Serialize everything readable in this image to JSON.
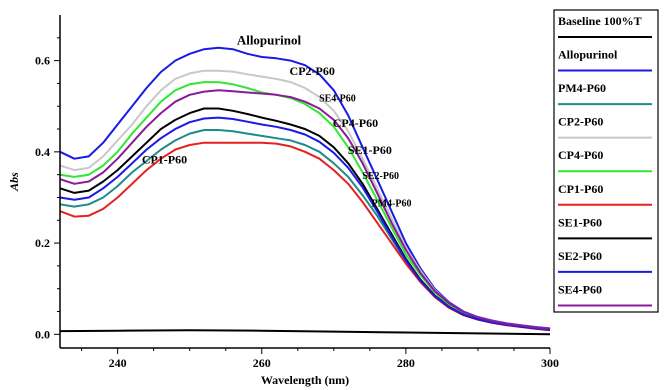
{
  "chart_data": {
    "type": "line",
    "title": "",
    "xlabel": "Wavelength (nm)",
    "ylabel": "Abs",
    "xlim": [
      232,
      300
    ],
    "ylim": [
      -0.03,
      0.7
    ],
    "xticks": [
      240,
      260,
      280,
      300
    ],
    "yticks": [
      0.0,
      0.2,
      0.4,
      0.6
    ],
    "xtick_labels": [
      "240",
      "260",
      "280",
      "300"
    ],
    "ytick_labels": [
      "0.0",
      "0.2",
      "0.4",
      "0.6"
    ],
    "grid": false,
    "legend": "right",
    "series": [
      {
        "name": "Baseline 100%T",
        "color": "#000000",
        "x": [
          232,
          240,
          250,
          260,
          270,
          280,
          290,
          300
        ],
        "y": [
          0.007,
          0.008,
          0.009,
          0.008,
          0.006,
          0.004,
          0.002,
          0.0
        ]
      },
      {
        "name": "Allopurinol",
        "color": "#1a1ae6",
        "x": [
          232,
          234,
          236,
          238,
          240,
          242,
          244,
          246,
          248,
          250,
          252,
          254,
          256,
          258,
          260,
          262,
          264,
          266,
          268,
          270,
          272,
          274,
          276,
          278,
          280,
          282,
          284,
          286,
          288,
          290,
          292,
          294,
          296,
          298,
          300
        ],
        "y": [
          0.4,
          0.385,
          0.39,
          0.42,
          0.46,
          0.5,
          0.54,
          0.575,
          0.6,
          0.615,
          0.625,
          0.628,
          0.625,
          0.615,
          0.608,
          0.605,
          0.6,
          0.59,
          0.57,
          0.535,
          0.48,
          0.41,
          0.34,
          0.27,
          0.2,
          0.145,
          0.1,
          0.07,
          0.05,
          0.038,
          0.03,
          0.024,
          0.02,
          0.016,
          0.013
        ]
      },
      {
        "name": "PM4-P60",
        "color": "#1f8a8a",
        "x": [
          232,
          234,
          236,
          238,
          240,
          242,
          244,
          246,
          248,
          250,
          252,
          254,
          256,
          258,
          260,
          262,
          264,
          266,
          268,
          270,
          272,
          274,
          276,
          278,
          280,
          282,
          284,
          286,
          288,
          290,
          292,
          294,
          296,
          298,
          300
        ],
        "y": [
          0.285,
          0.28,
          0.285,
          0.3,
          0.325,
          0.355,
          0.38,
          0.405,
          0.425,
          0.44,
          0.448,
          0.448,
          0.445,
          0.44,
          0.435,
          0.43,
          0.425,
          0.415,
          0.4,
          0.375,
          0.345,
          0.305,
          0.26,
          0.21,
          0.16,
          0.12,
          0.085,
          0.062,
          0.045,
          0.035,
          0.028,
          0.022,
          0.018,
          0.014,
          0.011
        ]
      },
      {
        "name": "CP2-P60",
        "color": "#c8c8c8",
        "x": [
          232,
          234,
          236,
          238,
          240,
          242,
          244,
          246,
          248,
          250,
          252,
          254,
          256,
          258,
          260,
          262,
          264,
          266,
          268,
          270,
          272,
          274,
          276,
          278,
          280,
          282,
          284,
          286,
          288,
          290,
          292,
          294,
          296,
          298,
          300
        ],
        "y": [
          0.37,
          0.36,
          0.365,
          0.39,
          0.425,
          0.46,
          0.5,
          0.535,
          0.56,
          0.572,
          0.578,
          0.578,
          0.576,
          0.57,
          0.565,
          0.56,
          0.553,
          0.54,
          0.52,
          0.49,
          0.445,
          0.385,
          0.32,
          0.255,
          0.19,
          0.14,
          0.097,
          0.068,
          0.049,
          0.037,
          0.029,
          0.023,
          0.019,
          0.015,
          0.012
        ]
      },
      {
        "name": "CP4-P60",
        "color": "#33e633",
        "x": [
          232,
          234,
          236,
          238,
          240,
          242,
          244,
          246,
          248,
          250,
          252,
          254,
          256,
          258,
          260,
          262,
          264,
          266,
          268,
          270,
          272,
          274,
          276,
          278,
          280,
          282,
          284,
          286,
          288,
          290,
          292,
          294,
          296,
          298,
          300
        ],
        "y": [
          0.35,
          0.345,
          0.35,
          0.37,
          0.4,
          0.44,
          0.475,
          0.51,
          0.535,
          0.548,
          0.553,
          0.553,
          0.548,
          0.54,
          0.53,
          0.525,
          0.518,
          0.505,
          0.485,
          0.455,
          0.41,
          0.355,
          0.295,
          0.235,
          0.175,
          0.13,
          0.092,
          0.065,
          0.047,
          0.036,
          0.028,
          0.022,
          0.018,
          0.014,
          0.011
        ]
      },
      {
        "name": "CP1-P60",
        "color": "#e62020",
        "x": [
          232,
          234,
          236,
          238,
          240,
          242,
          244,
          246,
          248,
          250,
          252,
          254,
          256,
          258,
          260,
          262,
          264,
          266,
          268,
          270,
          272,
          274,
          276,
          278,
          280,
          282,
          284,
          286,
          288,
          290,
          292,
          294,
          296,
          298,
          300
        ],
        "y": [
          0.27,
          0.258,
          0.26,
          0.275,
          0.3,
          0.33,
          0.36,
          0.385,
          0.405,
          0.415,
          0.42,
          0.42,
          0.42,
          0.42,
          0.42,
          0.418,
          0.412,
          0.4,
          0.385,
          0.36,
          0.33,
          0.29,
          0.245,
          0.2,
          0.155,
          0.115,
          0.082,
          0.058,
          0.042,
          0.032,
          0.025,
          0.02,
          0.016,
          0.012,
          0.009
        ]
      },
      {
        "name": "SE1-P60",
        "color": "#000000",
        "x": [
          232,
          234,
          236,
          238,
          240,
          242,
          244,
          246,
          248,
          250,
          252,
          254,
          256,
          258,
          260,
          262,
          264,
          266,
          268,
          270,
          272,
          274,
          276,
          278,
          280,
          282,
          284,
          286,
          288,
          290,
          292,
          294,
          296,
          298,
          300
        ],
        "y": [
          0.32,
          0.31,
          0.315,
          0.335,
          0.36,
          0.39,
          0.42,
          0.45,
          0.47,
          0.485,
          0.495,
          0.495,
          0.49,
          0.483,
          0.475,
          0.468,
          0.46,
          0.45,
          0.435,
          0.41,
          0.375,
          0.33,
          0.275,
          0.22,
          0.165,
          0.12,
          0.085,
          0.06,
          0.043,
          0.033,
          0.026,
          0.021,
          0.017,
          0.013,
          0.01
        ]
      },
      {
        "name": "SE2-P60",
        "color": "#1a1ae6",
        "x": [
          232,
          234,
          236,
          238,
          240,
          242,
          244,
          246,
          248,
          250,
          252,
          254,
          256,
          258,
          260,
          262,
          264,
          266,
          268,
          270,
          272,
          274,
          276,
          278,
          280,
          282,
          284,
          286,
          288,
          290,
          292,
          294,
          296,
          298,
          300
        ],
        "y": [
          0.3,
          0.295,
          0.3,
          0.32,
          0.345,
          0.375,
          0.405,
          0.43,
          0.45,
          0.465,
          0.473,
          0.475,
          0.472,
          0.466,
          0.46,
          0.455,
          0.448,
          0.438,
          0.422,
          0.398,
          0.365,
          0.322,
          0.27,
          0.215,
          0.162,
          0.118,
          0.084,
          0.06,
          0.043,
          0.033,
          0.026,
          0.021,
          0.017,
          0.013,
          0.01
        ]
      },
      {
        "name": "SE4-P60",
        "color": "#8a1a9a",
        "x": [
          232,
          234,
          236,
          238,
          240,
          242,
          244,
          246,
          248,
          250,
          252,
          254,
          256,
          258,
          260,
          262,
          264,
          266,
          268,
          270,
          272,
          274,
          276,
          278,
          280,
          282,
          284,
          286,
          288,
          290,
          292,
          294,
          296,
          298,
          300
        ],
        "y": [
          0.34,
          0.33,
          0.335,
          0.355,
          0.385,
          0.42,
          0.455,
          0.485,
          0.51,
          0.525,
          0.532,
          0.535,
          0.533,
          0.53,
          0.528,
          0.525,
          0.52,
          0.51,
          0.495,
          0.47,
          0.43,
          0.375,
          0.31,
          0.245,
          0.185,
          0.135,
          0.095,
          0.068,
          0.049,
          0.037,
          0.029,
          0.023,
          0.019,
          0.015,
          0.012
        ]
      }
    ],
    "annotations": [
      {
        "text": "Allopurinol",
        "x": 261,
        "y": 0.635,
        "size": 13
      },
      {
        "text": "CP2-P60",
        "x": 267,
        "y": 0.568,
        "size": 12
      },
      {
        "text": "SE4-P60",
        "x": 270.5,
        "y": 0.51,
        "size": 10
      },
      {
        "text": "CP4-P60",
        "x": 273,
        "y": 0.455,
        "size": 12
      },
      {
        "text": "SE1-P60",
        "x": 275,
        "y": 0.395,
        "size": 12
      },
      {
        "text": "SE2-P60",
        "x": 276.5,
        "y": 0.34,
        "size": 10
      },
      {
        "text": "PM4-P60",
        "x": 278,
        "y": 0.28,
        "size": 10
      },
      {
        "text": "CP1-P60",
        "x": 246.5,
        "y": 0.375,
        "size": 12
      }
    ]
  }
}
